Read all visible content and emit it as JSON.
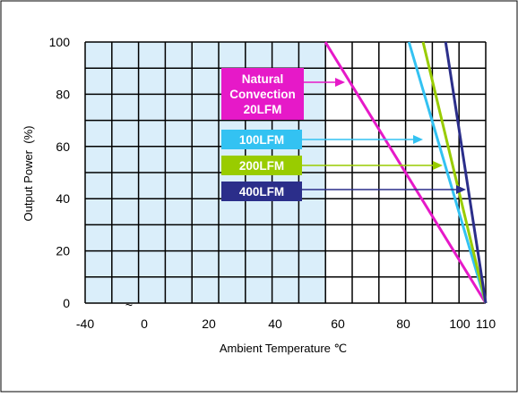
{
  "colors": {
    "shaded_region": "#daeefa",
    "grid": "#000000",
    "natural_convection": "#e619c8",
    "lfm100": "#33c2f2",
    "lfm200": "#99cc00",
    "lfm400": "#2b2e8a"
  },
  "chart_data": {
    "type": "line",
    "title": "",
    "xlabel": "Ambient Temperature ℃",
    "ylabel": "Output Power  (%)",
    "axis_break_mark": "~",
    "x_tick_labels": [
      "-40",
      "0",
      "20",
      "40",
      "60",
      "80",
      "100",
      "110"
    ],
    "y_tick_labels": [
      "0",
      "20",
      "40",
      "60",
      "80",
      "100"
    ],
    "ylim": [
      0,
      100
    ],
    "grid": true,
    "shaded_region_x": [
      -40,
      56
    ],
    "series": [
      {
        "id": "natural",
        "name": "Natural Convection 20LFM",
        "label_lines": [
          "Natural",
          "Convection",
          "20LFM"
        ],
        "color_key": "natural_convection",
        "x": [
          56,
          110
        ],
        "y": [
          100,
          0
        ]
      },
      {
        "id": "lfm100",
        "name": "100LFM",
        "label_lines": [
          "100LFM"
        ],
        "color_key": "lfm100",
        "x": [
          82,
          110
        ],
        "y": [
          100,
          0
        ]
      },
      {
        "id": "lfm200",
        "name": "200LFM",
        "label_lines": [
          "200LFM"
        ],
        "color_key": "lfm200",
        "x": [
          87,
          110
        ],
        "y": [
          100,
          0
        ]
      },
      {
        "id": "lfm400",
        "name": "400LFM",
        "label_lines": [
          "400LFM"
        ],
        "color_key": "lfm400",
        "x": [
          95,
          110
        ],
        "y": [
          100,
          0
        ]
      }
    ]
  }
}
